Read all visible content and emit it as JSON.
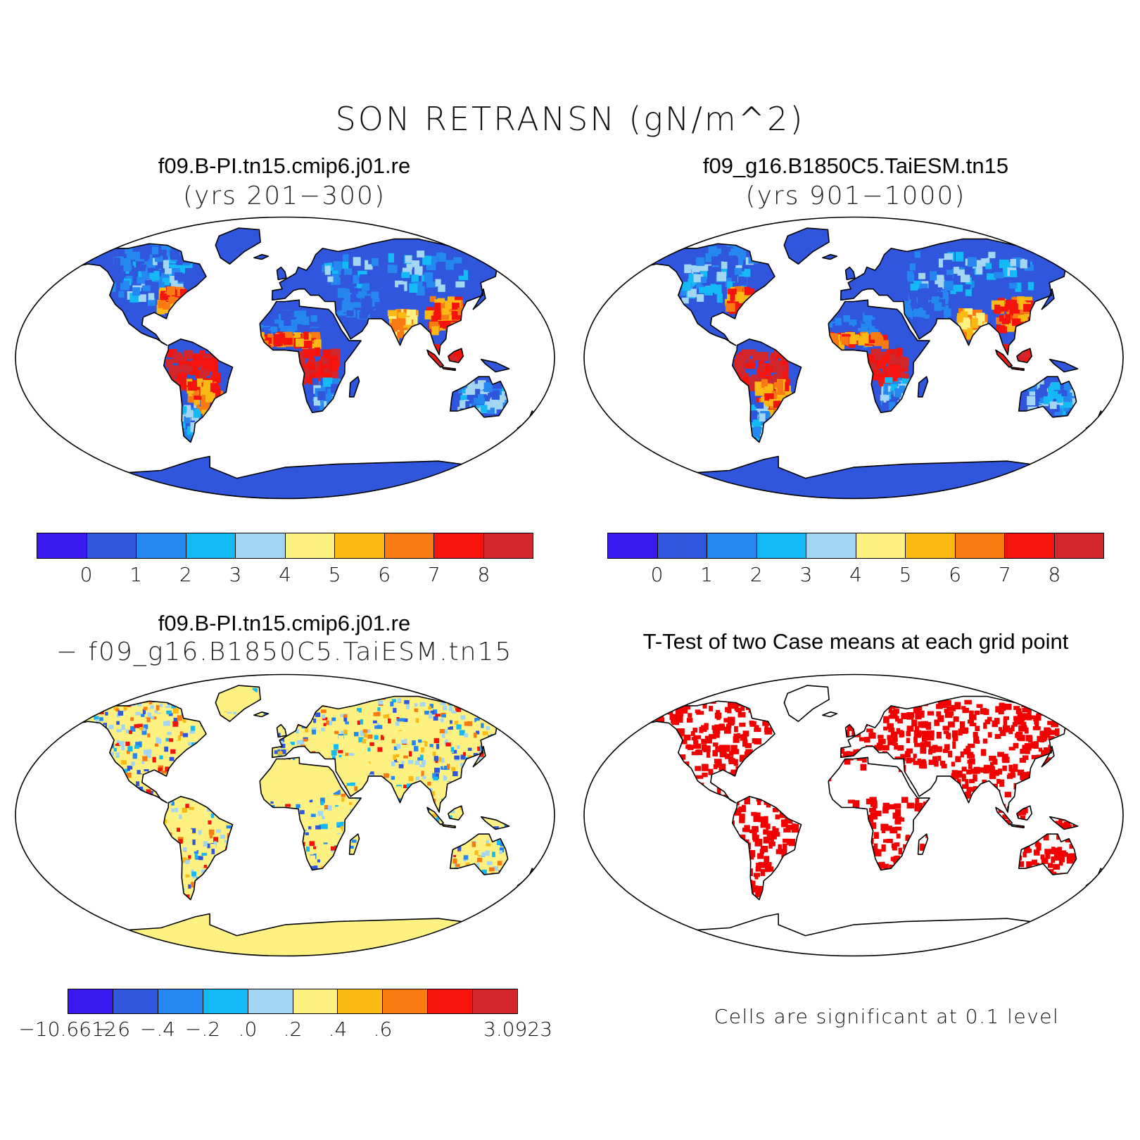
{
  "title": "SON RETRANSN (gN/m^2)",
  "panels": {
    "case1": {
      "title": "f09.B-PI.tn15.cmip6.j01.re",
      "subtitle": "(yrs 201−300)"
    },
    "case2": {
      "title": "f09_g16.B1850C5.TaiESM.tn15",
      "subtitle": "(yrs 901−1000)"
    },
    "diff": {
      "title": "f09.B-PI.tn15.cmip6.j01.re",
      "subtitle": "− f09_g16.B1850C5.TaiESM.tn15"
    },
    "ttest": {
      "title": "T-Test of two Case means at each grid point",
      "note": "Cells are significant at 0.1 level"
    }
  },
  "colorbars": {
    "mean": {
      "colors": [
        "#3a18f0",
        "#2f56dc",
        "#2588f0",
        "#14baf5",
        "#a3d6f2",
        "#fdf281",
        "#fbb914",
        "#f97a12",
        "#f5140d",
        "#d1262b"
      ],
      "tick_labels": [
        "0",
        "1",
        "2",
        "3",
        "4",
        "5",
        "6",
        "7",
        "8"
      ]
    },
    "diff": {
      "colors": [
        "#3a18f0",
        "#2f56dc",
        "#2588f0",
        "#14baf5",
        "#a3d6f2",
        "#fdf281",
        "#fbb914",
        "#f97a12",
        "#f5140d",
        "#d1262b"
      ],
      "tick_labels": [
        "−10.6612",
        "−.6",
        "−.4",
        "−.2",
        ".0",
        ".2",
        ".4",
        ".6",
        "",
        "3.0923"
      ]
    }
  },
  "significance_color": "#f20000",
  "projection": "Robinson"
}
